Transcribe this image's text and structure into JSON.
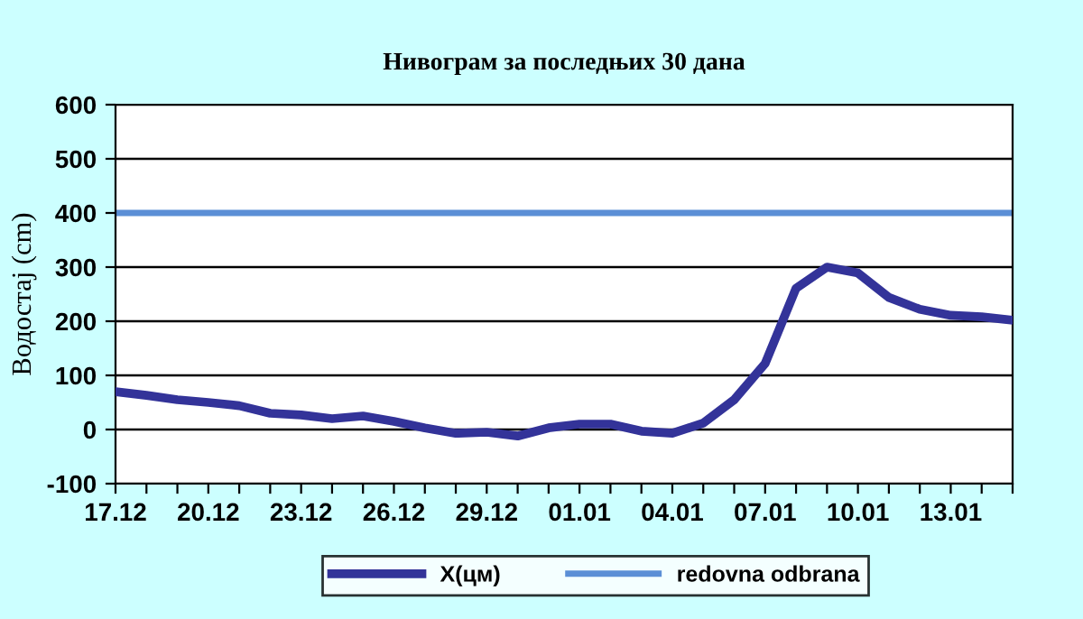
{
  "chart_data": {
    "type": "line",
    "title": "Нивограм за последњих 30 дана",
    "ylabel": "Водостај (cm)",
    "categories": [
      "17.12",
      null,
      null,
      "20.12",
      null,
      null,
      "23.12",
      null,
      null,
      "26.12",
      null,
      null,
      "29.12",
      null,
      null,
      "01.01",
      null,
      null,
      "04.01",
      null,
      null,
      "07.01",
      null,
      null,
      "10.01",
      null,
      null,
      "13.01",
      null,
      null
    ],
    "series": [
      {
        "name": "X(цм)",
        "color": "#333399",
        "values": [
          70,
          63,
          55,
          50,
          44,
          30,
          27,
          20,
          25,
          15,
          3,
          -7,
          -5,
          -12,
          3,
          10,
          10,
          -3,
          -7,
          12,
          55,
          122,
          261,
          300,
          289,
          244,
          222,
          211,
          208,
          202
        ]
      }
    ],
    "ref_lines": [
      {
        "axis": "y",
        "value": 400,
        "label": "redovna odbrana",
        "color": "#5b8fd6"
      }
    ],
    "ylim": [
      -100,
      600
    ],
    "yticks": [
      -100,
      0,
      100,
      200,
      300,
      400,
      500,
      600
    ],
    "grid": "y",
    "legend": "bottom",
    "marker": "none",
    "line_style": "solid"
  }
}
